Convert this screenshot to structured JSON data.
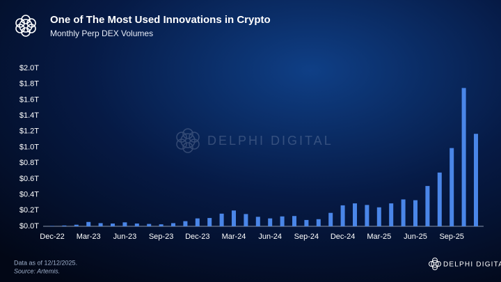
{
  "chart_data": {
    "type": "bar",
    "title": "One of The Most Used Innovations in Crypto",
    "subtitle": "Monthly Perp DEX Volumes",
    "footnotes": [
      "Data as of 12/12/2025.",
      "Source: Artemis."
    ],
    "watermark": "DELPHI DIGITAL",
    "brand": "DELPHI DIGITAL",
    "color": "#4a86e8",
    "grid": false,
    "categories": [
      "Dec-22",
      null,
      null,
      "Mar-23",
      null,
      null,
      "Jun-23",
      null,
      null,
      "Sep-23",
      null,
      null,
      "Dec-23",
      null,
      null,
      "Mar-24",
      null,
      null,
      "Jun-24",
      null,
      null,
      "Sep-24",
      null,
      null,
      "Dec-24",
      null,
      null,
      "Mar-25",
      null,
      null,
      "Jun-25",
      null,
      null,
      "Sep-25",
      null,
      null
    ],
    "values": [
      0.005,
      0.01,
      0.02,
      0.055,
      0.04,
      0.035,
      0.05,
      0.035,
      0.03,
      0.025,
      0.04,
      0.065,
      0.1,
      0.105,
      0.16,
      0.2,
      0.155,
      0.12,
      0.1,
      0.125,
      0.13,
      0.08,
      0.09,
      0.17,
      0.265,
      0.29,
      0.27,
      0.24,
      0.29,
      0.34,
      0.33,
      0.51,
      0.68,
      0.99,
      1.75,
      1.17
    ],
    "ylim": [
      0,
      2.0
    ],
    "yticks": [
      {
        "value": 0,
        "label": "$0.0T"
      },
      {
        "value": 0.2,
        "label": "$0.2T"
      },
      {
        "value": 0.4,
        "label": "$0.4T"
      },
      {
        "value": 0.6,
        "label": "$0.6T"
      },
      {
        "value": 0.8,
        "label": "$0.8T"
      },
      {
        "value": 1.0,
        "label": "$1.0T"
      },
      {
        "value": 1.2,
        "label": "$1.2T"
      },
      {
        "value": 1.4,
        "label": "$1.4T"
      },
      {
        "value": 1.6,
        "label": "$1.6T"
      },
      {
        "value": 1.8,
        "label": "$1.8T"
      },
      {
        "value": 2.0,
        "label": "$2.0T"
      }
    ]
  }
}
